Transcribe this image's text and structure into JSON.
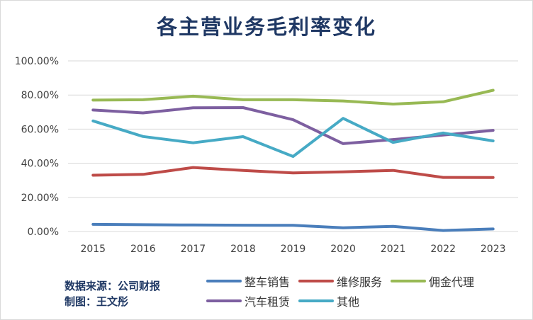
{
  "chart_data": {
    "type": "line",
    "title": "各主营业务毛利率变化",
    "categories": [
      "2015",
      "2016",
      "2017",
      "2018",
      "2019",
      "2020",
      "2021",
      "2022",
      "2023"
    ],
    "ylim": [
      0,
      100
    ],
    "yticks": [
      "0.00%",
      "20.00%",
      "40.00%",
      "60.00%",
      "80.00%",
      "100.00%"
    ],
    "grid": true,
    "legend_position": "bottom",
    "series": [
      {
        "name": "整车销售",
        "color": "#4a7ebb",
        "values": [
          4.2,
          4.0,
          3.8,
          3.7,
          3.6,
          2.2,
          3.0,
          0.6,
          1.5
        ]
      },
      {
        "name": "维修服务",
        "color": "#be4b48",
        "values": [
          33.0,
          33.5,
          37.5,
          35.8,
          34.3,
          35.0,
          35.8,
          31.7,
          31.6
        ]
      },
      {
        "name": "佣金代理",
        "color": "#98b954",
        "values": [
          77.0,
          77.2,
          79.3,
          77.2,
          77.2,
          76.5,
          74.7,
          76.0,
          82.8
        ]
      },
      {
        "name": "汽车租赁",
        "color": "#7d5fa0",
        "values": [
          71.2,
          69.5,
          72.5,
          72.6,
          65.5,
          51.5,
          53.9,
          56.5,
          59.3
        ]
      },
      {
        "name": "其他",
        "color": "#46aac5",
        "values": [
          64.8,
          55.7,
          52.0,
          55.6,
          44.0,
          66.3,
          52.2,
          57.7,
          53.1
        ]
      }
    ]
  },
  "source_line": "数据来源：公司财报",
  "author_line": "制图：王文彤"
}
